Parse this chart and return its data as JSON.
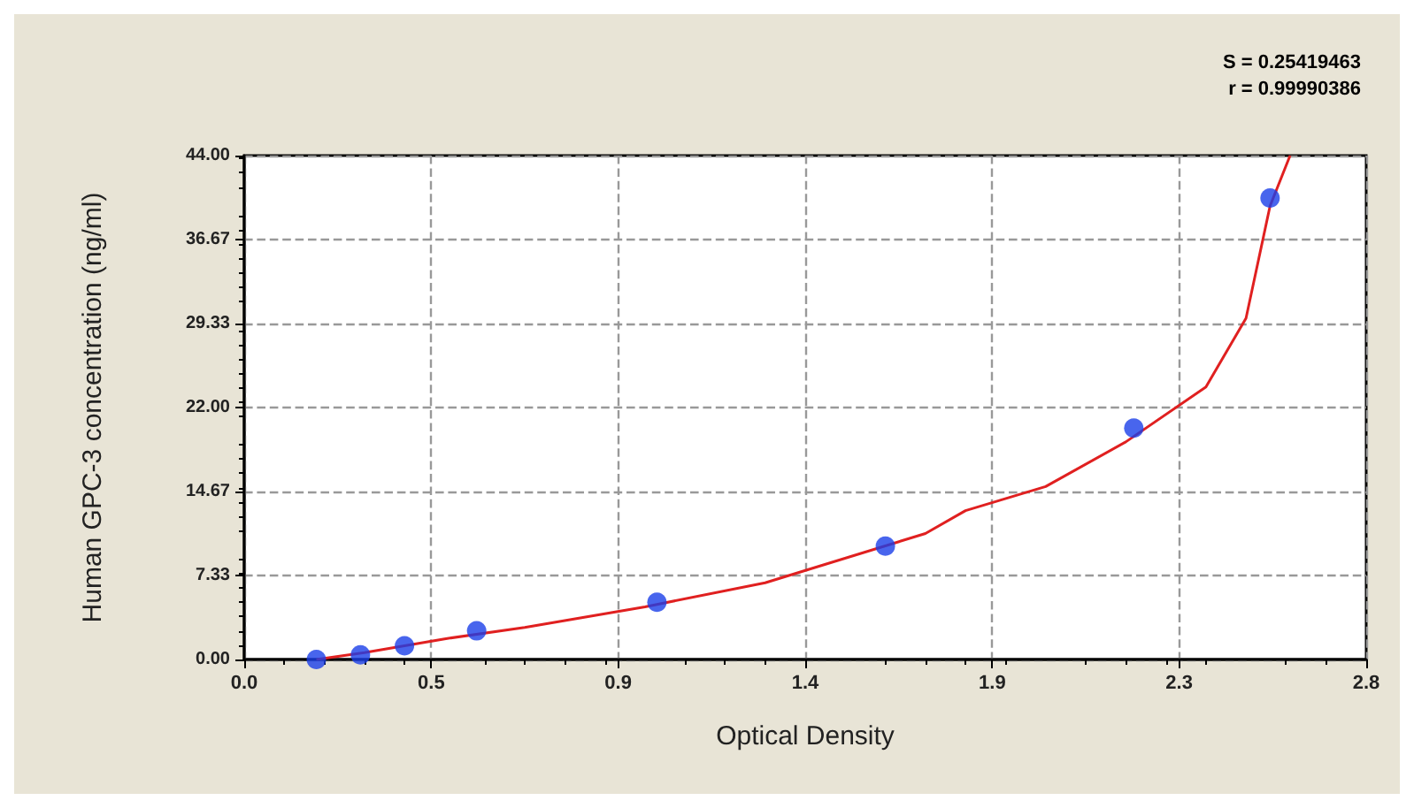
{
  "chart_data": {
    "type": "scatter",
    "xlabel": "Optical Density",
    "ylabel": "Human GPC-3 concentration (ng/ml)",
    "annotations": [
      "S = 0.25419463",
      "r = 0.99990386"
    ],
    "xlim": [
      0,
      2.8
    ],
    "xticks": [
      {
        "value": 0,
        "label": "0.0"
      },
      {
        "value": 0.4667,
        "label": "0.5"
      },
      {
        "value": 0.9333,
        "label": "0.9"
      },
      {
        "value": 1.4,
        "label": "1.4"
      },
      {
        "value": 1.8667,
        "label": "1.9"
      },
      {
        "value": 2.3333,
        "label": "2.3"
      },
      {
        "value": 2.8,
        "label": "2.8"
      }
    ],
    "ylim": [
      0,
      44
    ],
    "yticks": [
      {
        "value": 0,
        "label": "0.00"
      },
      {
        "value": 7.333,
        "label": "7.33"
      },
      {
        "value": 14.667,
        "label": "14.67"
      },
      {
        "value": 22,
        "label": "22.00"
      },
      {
        "value": 29.333,
        "label": "29.33"
      },
      {
        "value": 36.667,
        "label": "36.67"
      },
      {
        "value": 44,
        "label": "44.00"
      }
    ],
    "grid": true,
    "marker": "circle",
    "line_style": "solid",
    "series": [
      {
        "type": "line",
        "marker": "none",
        "color": "#e02020",
        "x": [
          0.18,
          0.3,
          0.5,
          0.7,
          1.0,
          1.3,
          1.7,
          1.8,
          2.0,
          2.2,
          2.4,
          2.5,
          2.56,
          2.61
        ],
        "values": [
          0,
          0.6,
          1.8,
          2.8,
          4.6,
          6.7,
          11.0,
          13.0,
          15.1,
          19.0,
          23.8,
          29.8,
          39.6,
          44
        ]
      },
      {
        "color": "#1a3fe8",
        "x": [
          0.18,
          0.29,
          0.4,
          0.58,
          1.03,
          1.6,
          2.22,
          2.56
        ],
        "values": [
          0,
          0.4,
          1.2,
          2.5,
          5.0,
          9.9,
          20.2,
          40.3
        ]
      }
    ]
  }
}
